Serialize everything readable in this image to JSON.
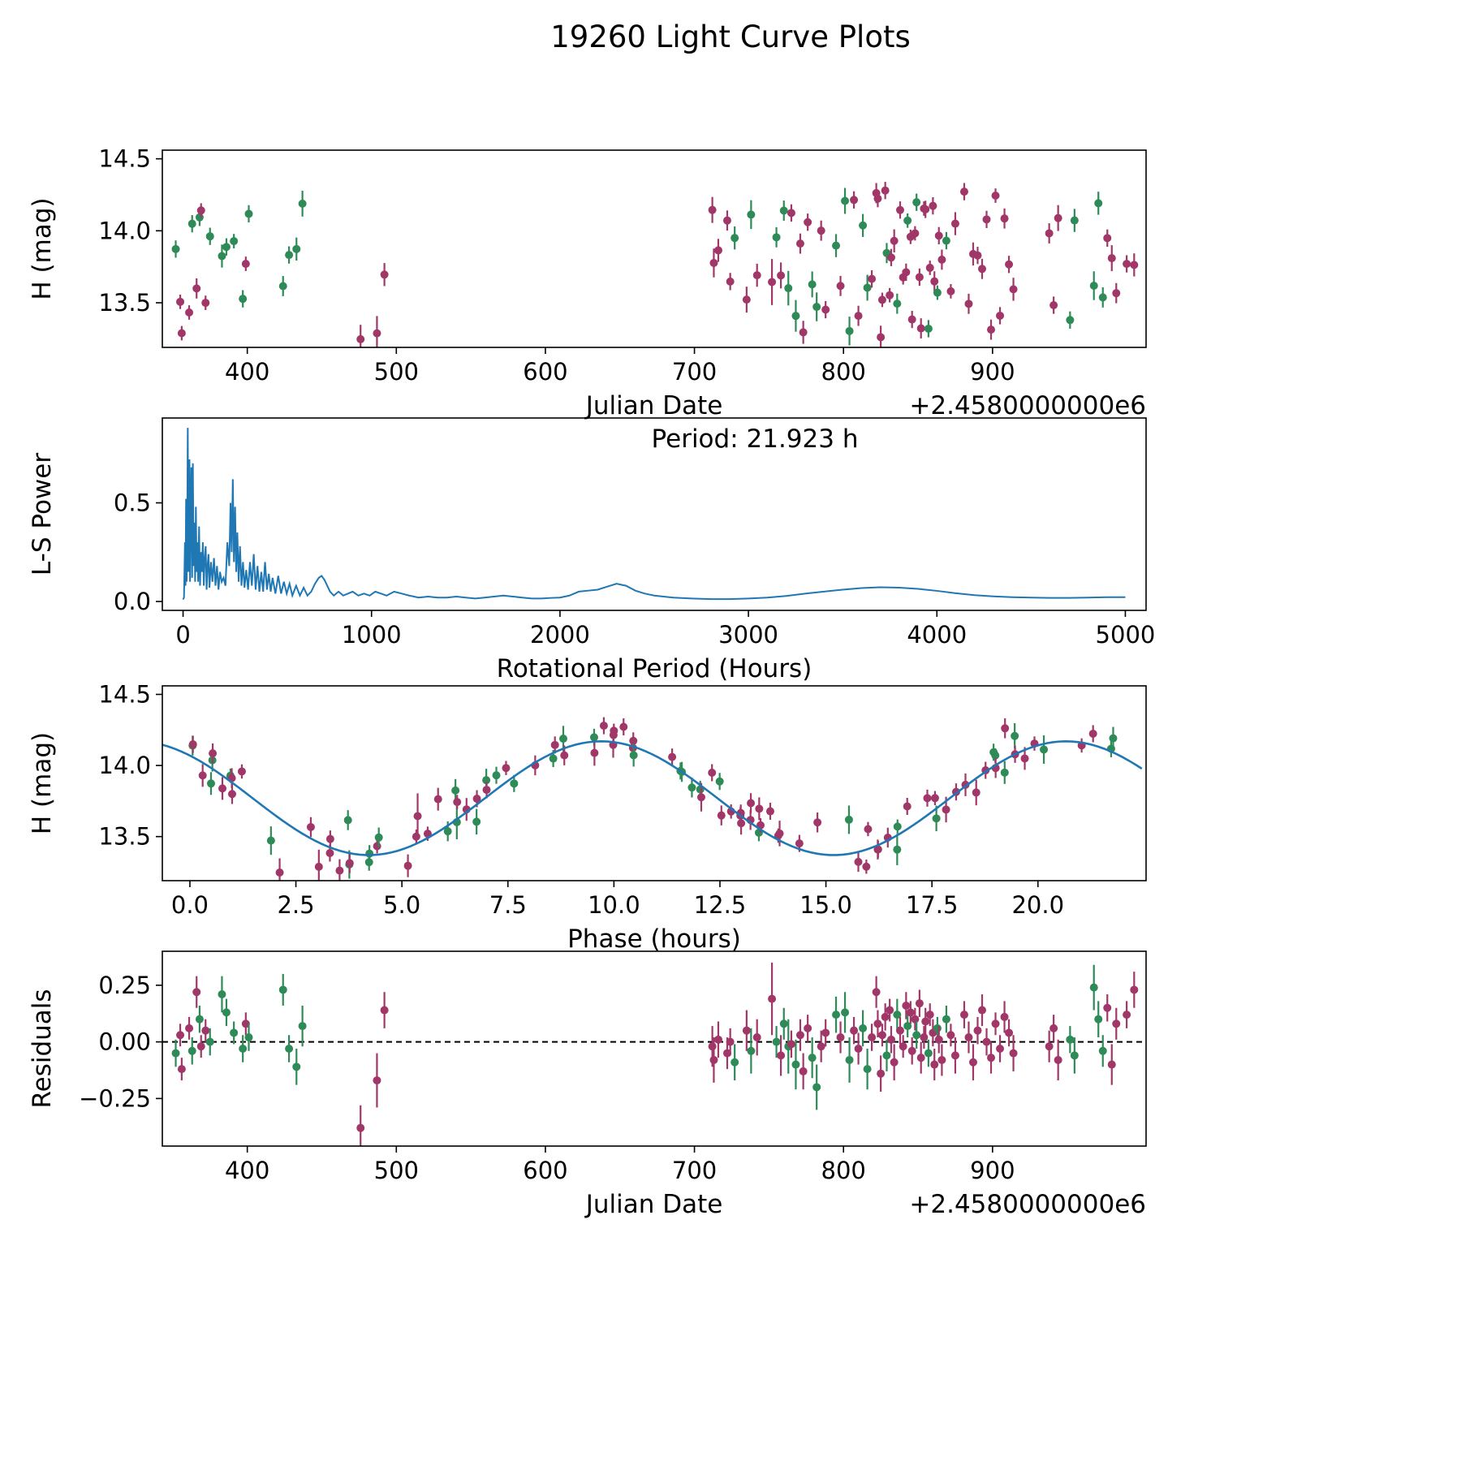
{
  "title": "19260 Light Curve Plots",
  "colors": {
    "series_green": "#2e8b57",
    "series_purple": "#a13768",
    "line_blue": "#1f77b4",
    "axes": "#000000"
  },
  "model": {
    "annotation": "Period: 21.923 h",
    "period_hours": 21.923,
    "mean_mag": 13.77,
    "amplitude_mag": 0.4,
    "peak_phase_hours": 9.7
  },
  "observations": {
    "format": [
      "jd_offset_from_2458000000e6_scaled",
      "residual_mag",
      "error_mag",
      "series_index"
    ],
    "series_names": [
      "green",
      "purple"
    ],
    "points": [
      [
        352,
        -0.05,
        0.06,
        0
      ],
      [
        355,
        0.03,
        0.05,
        1
      ],
      [
        356,
        -0.12,
        0.05,
        1
      ],
      [
        361,
        0.06,
        0.05,
        1
      ],
      [
        363,
        -0.04,
        0.06,
        0
      ],
      [
        366,
        0.22,
        0.07,
        1
      ],
      [
        368,
        0.1,
        0.06,
        0
      ],
      [
        369,
        -0.02,
        0.05,
        1
      ],
      [
        372,
        0.05,
        0.05,
        1
      ],
      [
        375,
        0.0,
        0.06,
        0
      ],
      [
        383,
        0.21,
        0.08,
        0
      ],
      [
        386,
        0.13,
        0.06,
        0
      ],
      [
        391,
        0.04,
        0.05,
        0
      ],
      [
        397,
        -0.03,
        0.06,
        0
      ],
      [
        399,
        0.08,
        0.05,
        1
      ],
      [
        401,
        0.02,
        0.06,
        0
      ],
      [
        424,
        0.23,
        0.07,
        0
      ],
      [
        428,
        -0.03,
        0.06,
        0
      ],
      [
        433,
        -0.11,
        0.08,
        0
      ],
      [
        437,
        0.07,
        0.09,
        0
      ],
      [
        476,
        -0.38,
        0.1,
        1
      ],
      [
        487,
        -0.17,
        0.12,
        1
      ],
      [
        492,
        0.14,
        0.08,
        1
      ],
      [
        712,
        -0.02,
        0.09,
        1
      ],
      [
        713,
        -0.08,
        0.1,
        1
      ],
      [
        716,
        0.01,
        0.08,
        1
      ],
      [
        722,
        -0.05,
        0.07,
        1
      ],
      [
        724,
        0.0,
        0.06,
        1
      ],
      [
        727,
        -0.09,
        0.08,
        0
      ],
      [
        735,
        0.05,
        0.09,
        1
      ],
      [
        738,
        -0.04,
        0.1,
        0
      ],
      [
        742,
        0.02,
        0.08,
        1
      ],
      [
        752,
        0.19,
        0.16,
        1
      ],
      [
        755,
        0.0,
        0.07,
        0
      ],
      [
        758,
        -0.06,
        0.09,
        1
      ],
      [
        760,
        0.08,
        0.07,
        0
      ],
      [
        763,
        -0.02,
        0.12,
        0
      ],
      [
        765,
        -0.01,
        0.06,
        1
      ],
      [
        768,
        -0.1,
        0.11,
        0
      ],
      [
        771,
        0.03,
        0.07,
        1
      ],
      [
        773,
        -0.13,
        0.08,
        1
      ],
      [
        776,
        0.06,
        0.06,
        1
      ],
      [
        779,
        -0.07,
        0.09,
        0
      ],
      [
        782,
        -0.2,
        0.1,
        0
      ],
      [
        785,
        -0.02,
        0.07,
        1
      ],
      [
        788,
        0.04,
        0.06,
        1
      ],
      [
        795,
        0.12,
        0.08,
        0
      ],
      [
        798,
        0.02,
        0.07,
        1
      ],
      [
        801,
        0.13,
        0.09,
        0
      ],
      [
        804,
        -0.08,
        0.1,
        0
      ],
      [
        807,
        0.05,
        0.06,
        1
      ],
      [
        810,
        -0.03,
        0.07,
        1
      ],
      [
        813,
        0.06,
        0.08,
        0
      ],
      [
        816,
        -0.12,
        0.09,
        0
      ],
      [
        819,
        0.02,
        0.06,
        1
      ],
      [
        822,
        0.22,
        0.07,
        1
      ],
      [
        823,
        0.08,
        0.06,
        1
      ],
      [
        825,
        -0.14,
        0.08,
        1
      ],
      [
        826,
        0.03,
        0.05,
        1
      ],
      [
        828,
        0.11,
        0.06,
        1
      ],
      [
        829,
        -0.06,
        0.07,
        0
      ],
      [
        831,
        0.14,
        0.05,
        1
      ],
      [
        832,
        0.01,
        0.06,
        1
      ],
      [
        834,
        -0.09,
        0.08,
        1
      ],
      [
        836,
        0.12,
        0.07,
        0
      ],
      [
        838,
        0.05,
        0.06,
        1
      ],
      [
        840,
        -0.02,
        0.05,
        1
      ],
      [
        842,
        0.16,
        0.06,
        1
      ],
      [
        843,
        0.07,
        0.05,
        0
      ],
      [
        845,
        0.13,
        0.05,
        1
      ],
      [
        846,
        -0.04,
        0.06,
        1
      ],
      [
        848,
        0.1,
        0.05,
        1
      ],
      [
        849,
        0.03,
        0.06,
        0
      ],
      [
        851,
        0.17,
        0.06,
        1
      ],
      [
        852,
        -0.07,
        0.07,
        1
      ],
      [
        854,
        0.02,
        0.05,
        1
      ],
      [
        855,
        0.09,
        0.06,
        1
      ],
      [
        857,
        -0.05,
        0.06,
        0
      ],
      [
        858,
        0.12,
        0.05,
        1
      ],
      [
        860,
        0.04,
        0.06,
        1
      ],
      [
        861,
        -0.1,
        0.07,
        1
      ],
      [
        863,
        0.06,
        0.05,
        0
      ],
      [
        864,
        0.01,
        0.06,
        1
      ],
      [
        866,
        -0.08,
        0.07,
        1
      ],
      [
        869,
        0.1,
        0.06,
        0
      ],
      [
        872,
        0.03,
        0.05,
        1
      ],
      [
        875,
        -0.06,
        0.08,
        1
      ],
      [
        881,
        0.12,
        0.06,
        1
      ],
      [
        884,
        0.02,
        0.07,
        1
      ],
      [
        887,
        -0.09,
        0.08,
        1
      ],
      [
        890,
        0.05,
        0.06,
        1
      ],
      [
        893,
        0.14,
        0.07,
        1
      ],
      [
        896,
        0.0,
        0.06,
        1
      ],
      [
        899,
        -0.07,
        0.07,
        1
      ],
      [
        902,
        0.08,
        0.05,
        1
      ],
      [
        905,
        -0.03,
        0.06,
        1
      ],
      [
        908,
        0.11,
        0.07,
        1
      ],
      [
        911,
        0.04,
        0.06,
        1
      ],
      [
        914,
        -0.05,
        0.08,
        1
      ],
      [
        938,
        -0.02,
        0.07,
        1
      ],
      [
        941,
        0.06,
        0.06,
        1
      ],
      [
        944,
        -0.08,
        0.09,
        1
      ],
      [
        952,
        0.01,
        0.06,
        0
      ],
      [
        955,
        -0.06,
        0.08,
        0
      ],
      [
        968,
        0.24,
        0.1,
        0
      ],
      [
        971,
        0.1,
        0.08,
        0
      ],
      [
        974,
        -0.04,
        0.07,
        0
      ],
      [
        977,
        0.15,
        0.06,
        1
      ],
      [
        980,
        -0.1,
        0.09,
        1
      ],
      [
        983,
        0.08,
        0.07,
        1
      ],
      [
        990,
        0.12,
        0.06,
        1
      ],
      [
        995,
        0.23,
        0.08,
        1
      ]
    ]
  },
  "chart_data": [
    {
      "name": "light-curve",
      "type": "scatter",
      "xlabel": "Julian Date",
      "x_offset_label": "+2.4580000000e6",
      "ylabel": "H (mag)",
      "y_axis_inverted": true,
      "xlim": [
        343,
        1003
      ],
      "ytop": 14.56,
      "ybot": 13.19,
      "xticks": [
        400,
        500,
        600,
        700,
        800,
        900
      ],
      "xticklabels": [
        "400",
        "500",
        "600",
        "700",
        "800",
        "900"
      ],
      "yticks": [
        14.5,
        14.0,
        13.5
      ],
      "yticklabels": [
        "14.5",
        "14.0",
        "13.5"
      ],
      "points_source": "observations",
      "x_source": "jd",
      "y_source": "magnitude"
    },
    {
      "name": "periodogram",
      "type": "line",
      "xlabel": "Rotational Period (Hours)",
      "ylabel": "L-S Power",
      "annotation": "Period: 21.923 h",
      "xlim": [
        -110,
        5110
      ],
      "ytop": 0.93,
      "ybot": -0.045,
      "xticks": [
        0,
        1000,
        2000,
        3000,
        4000,
        5000
      ],
      "xticklabels": [
        "0",
        "1000",
        "2000",
        "3000",
        "4000",
        "5000"
      ],
      "yticks": [
        0.0,
        0.5
      ],
      "yticklabels": [
        "0.0",
        "0.5"
      ],
      "line_points": [
        [
          0,
          0.01
        ],
        [
          5,
          0.02
        ],
        [
          10,
          0.3
        ],
        [
          13,
          0.08
        ],
        [
          16,
          0.52
        ],
        [
          19,
          0.1
        ],
        [
          22,
          0.35
        ],
        [
          25,
          0.88
        ],
        [
          28,
          0.15
        ],
        [
          31,
          0.6
        ],
        [
          34,
          0.72
        ],
        [
          37,
          0.1
        ],
        [
          40,
          0.45
        ],
        [
          44,
          0.68
        ],
        [
          48,
          0.12
        ],
        [
          52,
          0.7
        ],
        [
          56,
          0.18
        ],
        [
          60,
          0.4
        ],
        [
          64,
          0.1
        ],
        [
          68,
          0.48
        ],
        [
          72,
          0.15
        ],
        [
          76,
          0.3
        ],
        [
          80,
          0.1
        ],
        [
          85,
          0.38
        ],
        [
          90,
          0.08
        ],
        [
          95,
          0.25
        ],
        [
          100,
          0.15
        ],
        [
          105,
          0.3
        ],
        [
          110,
          0.08
        ],
        [
          115,
          0.22
        ],
        [
          120,
          0.28
        ],
        [
          125,
          0.06
        ],
        [
          130,
          0.18
        ],
        [
          135,
          0.24
        ],
        [
          140,
          0.07
        ],
        [
          148,
          0.2
        ],
        [
          156,
          0.1
        ],
        [
          164,
          0.22
        ],
        [
          172,
          0.08
        ],
        [
          180,
          0.18
        ],
        [
          188,
          0.06
        ],
        [
          196,
          0.15
        ],
        [
          205,
          0.1
        ],
        [
          215,
          0.12
        ],
        [
          225,
          0.08
        ],
        [
          235,
          0.3
        ],
        [
          245,
          0.18
        ],
        [
          252,
          0.5
        ],
        [
          258,
          0.25
        ],
        [
          264,
          0.62
        ],
        [
          270,
          0.2
        ],
        [
          276,
          0.48
        ],
        [
          282,
          0.15
        ],
        [
          288,
          0.35
        ],
        [
          295,
          0.1
        ],
        [
          302,
          0.28
        ],
        [
          310,
          0.08
        ],
        [
          318,
          0.2
        ],
        [
          326,
          0.07
        ],
        [
          335,
          0.16
        ],
        [
          345,
          0.06
        ],
        [
          355,
          0.2
        ],
        [
          365,
          0.08
        ],
        [
          375,
          0.24
        ],
        [
          385,
          0.06
        ],
        [
          395,
          0.18
        ],
        [
          405,
          0.05
        ],
        [
          415,
          0.15
        ],
        [
          425,
          0.05
        ],
        [
          435,
          0.2
        ],
        [
          445,
          0.06
        ],
        [
          455,
          0.14
        ],
        [
          465,
          0.05
        ],
        [
          475,
          0.12
        ],
        [
          490,
          0.04
        ],
        [
          505,
          0.13
        ],
        [
          520,
          0.04
        ],
        [
          535,
          0.1
        ],
        [
          550,
          0.04
        ],
        [
          565,
          0.09
        ],
        [
          580,
          0.03
        ],
        [
          600,
          0.08
        ],
        [
          620,
          0.03
        ],
        [
          640,
          0.07
        ],
        [
          660,
          0.03
        ],
        [
          680,
          0.05
        ],
        [
          700,
          0.09
        ],
        [
          720,
          0.12
        ],
        [
          735,
          0.13
        ],
        [
          750,
          0.11
        ],
        [
          765,
          0.08
        ],
        [
          780,
          0.05
        ],
        [
          800,
          0.03
        ],
        [
          825,
          0.05
        ],
        [
          850,
          0.03
        ],
        [
          875,
          0.04
        ],
        [
          900,
          0.05
        ],
        [
          930,
          0.03
        ],
        [
          960,
          0.04
        ],
        [
          990,
          0.03
        ],
        [
          1020,
          0.05
        ],
        [
          1050,
          0.04
        ],
        [
          1080,
          0.03
        ],
        [
          1120,
          0.05
        ],
        [
          1160,
          0.04
        ],
        [
          1200,
          0.03
        ],
        [
          1250,
          0.02
        ],
        [
          1300,
          0.025
        ],
        [
          1350,
          0.02
        ],
        [
          1400,
          0.02
        ],
        [
          1450,
          0.025
        ],
        [
          1500,
          0.02
        ],
        [
          1550,
          0.015
        ],
        [
          1600,
          0.02
        ],
        [
          1650,
          0.025
        ],
        [
          1700,
          0.03
        ],
        [
          1750,
          0.025
        ],
        [
          1800,
          0.02
        ],
        [
          1850,
          0.015
        ],
        [
          1900,
          0.015
        ],
        [
          1950,
          0.018
        ],
        [
          2000,
          0.02
        ],
        [
          2050,
          0.03
        ],
        [
          2100,
          0.05
        ],
        [
          2150,
          0.055
        ],
        [
          2200,
          0.06
        ],
        [
          2250,
          0.075
        ],
        [
          2300,
          0.09
        ],
        [
          2350,
          0.08
        ],
        [
          2400,
          0.055
        ],
        [
          2450,
          0.04
        ],
        [
          2500,
          0.03
        ],
        [
          2550,
          0.025
        ],
        [
          2600,
          0.02
        ],
        [
          2700,
          0.015
        ],
        [
          2800,
          0.012
        ],
        [
          2900,
          0.012
        ],
        [
          3000,
          0.015
        ],
        [
          3100,
          0.02
        ],
        [
          3200,
          0.028
        ],
        [
          3300,
          0.04
        ],
        [
          3400,
          0.05
        ],
        [
          3500,
          0.06
        ],
        [
          3600,
          0.068
        ],
        [
          3700,
          0.072
        ],
        [
          3800,
          0.07
        ],
        [
          3900,
          0.064
        ],
        [
          4000,
          0.054
        ],
        [
          4100,
          0.042
        ],
        [
          4200,
          0.032
        ],
        [
          4300,
          0.026
        ],
        [
          4400,
          0.022
        ],
        [
          4500,
          0.02
        ],
        [
          4600,
          0.018
        ],
        [
          4700,
          0.018
        ],
        [
          4800,
          0.02
        ],
        [
          4900,
          0.022
        ],
        [
          5000,
          0.022
        ]
      ]
    },
    {
      "name": "phase-curve",
      "type": "scatter",
      "xlabel": "Phase (hours)",
      "ylabel": "H (mag)",
      "y_axis_inverted": true,
      "xlim": [
        -0.65,
        22.55
      ],
      "ytop": 14.56,
      "ybot": 13.19,
      "xticks": [
        0,
        2.5,
        5,
        7.5,
        10,
        12.5,
        15,
        17.5,
        20
      ],
      "xticklabels": [
        "0.0",
        "2.5",
        "5.0",
        "7.5",
        "10.0",
        "12.5",
        "15.0",
        "17.5",
        "20.0"
      ],
      "yticks": [
        14.5,
        14.0,
        13.5
      ],
      "yticklabels": [
        "14.5",
        "14.0",
        "13.5"
      ],
      "points_source": "observations",
      "x_source": "phase",
      "y_source": "magnitude",
      "fit_curve": true
    },
    {
      "name": "residuals",
      "type": "scatter",
      "xlabel": "Julian Date",
      "x_offset_label": "+2.4580000000e6",
      "ylabel": "Residuals",
      "xlim": [
        343,
        1003
      ],
      "ytop": 0.4,
      "ybot": -0.46,
      "xticks": [
        400,
        500,
        600,
        700,
        800,
        900
      ],
      "xticklabels": [
        "400",
        "500",
        "600",
        "700",
        "800",
        "900"
      ],
      "yticks": [
        -0.25,
        0.0,
        0.25
      ],
      "yticklabels": [
        "−0.25",
        "0.00",
        "0.25"
      ],
      "points_source": "observations",
      "x_source": "jd",
      "y_source": "residual",
      "zero_line": true
    }
  ]
}
